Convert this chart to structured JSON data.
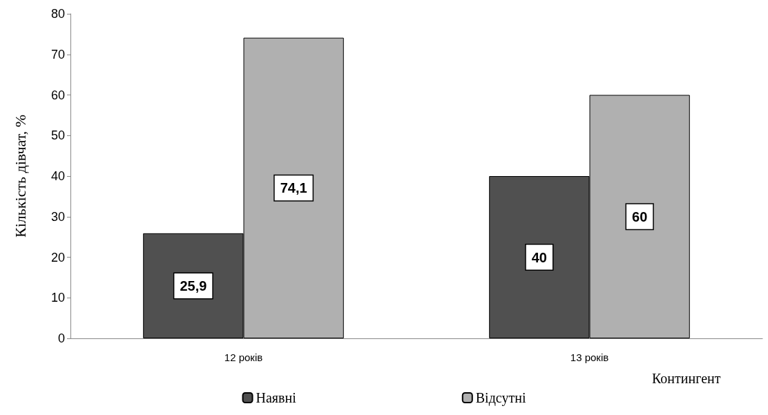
{
  "chart_data": {
    "type": "bar",
    "xlabel": "Контингент",
    "ylabel": "Кількість дівчат, %",
    "categories": [
      "12 років",
      "13 років"
    ],
    "series": [
      {
        "name": "Наявні",
        "color": "#505050",
        "values": [
          25.9,
          40
        ],
        "value_labels": [
          "25,9",
          "40"
        ]
      },
      {
        "name": "Відсутні",
        "color": "#b0b0b0",
        "values": [
          74.1,
          60
        ],
        "value_labels": [
          "74,1",
          "60"
        ]
      }
    ],
    "ylim": [
      0,
      80
    ],
    "yticks": [
      0,
      10,
      20,
      30,
      40,
      50,
      60,
      70,
      80
    ],
    "grid": false,
    "legend": "bottom"
  }
}
